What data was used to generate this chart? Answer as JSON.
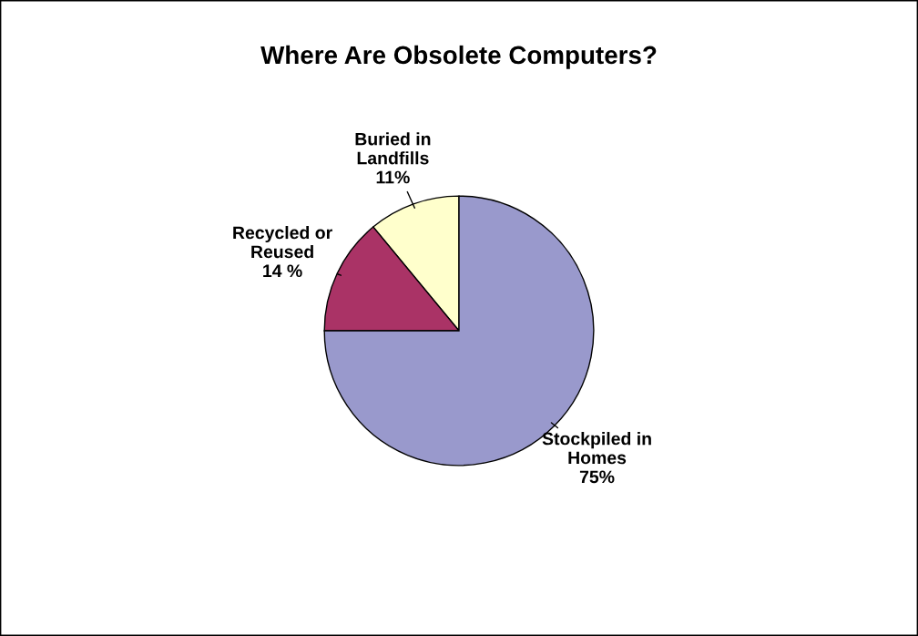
{
  "chart_data": {
    "type": "pie",
    "title": "Where Are Obsolete Computers?",
    "categories": [
      "Buried in\nLandfills",
      "Recycled or\nReused",
      "Stockpiled in\nHomes"
    ],
    "values": [
      11,
      14,
      75
    ],
    "value_labels": [
      "11%",
      "14 %",
      "75%"
    ],
    "colors": [
      "#ffffcc",
      "#aa3366",
      "#9999cc"
    ]
  }
}
